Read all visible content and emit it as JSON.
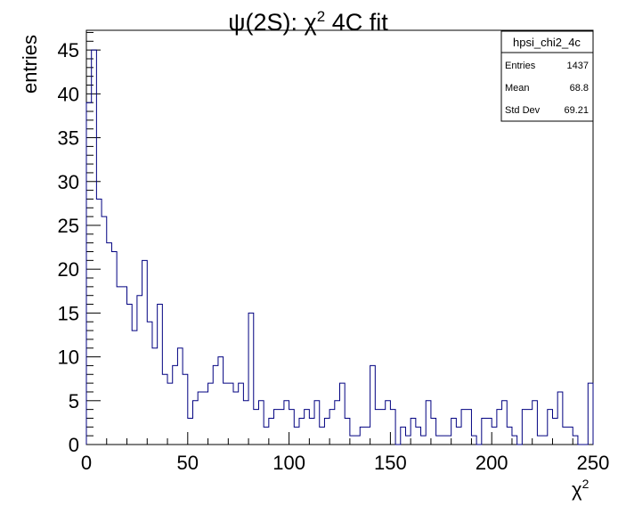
{
  "chart_data": {
    "type": "histogram",
    "title_main": "ψ(2S): χ",
    "title_sup": "2",
    "title_rest": " 4C fit",
    "ylabel": "entries",
    "xlabel_main": "χ",
    "xlabel_sup": "2",
    "xlim": [
      0,
      250
    ],
    "ylim": [
      0,
      47.25
    ],
    "bin_width": 2.5,
    "line_color": "#000080",
    "x_ticks": [
      "0",
      "50",
      "100",
      "150",
      "200",
      "250"
    ],
    "y_ticks": [
      "0",
      "5",
      "10",
      "15",
      "20",
      "25",
      "30",
      "35",
      "40",
      "45"
    ],
    "values": [
      39,
      45,
      28,
      26,
      23,
      22,
      18,
      18,
      16,
      13,
      17,
      21,
      14,
      11,
      16,
      8,
      7,
      9,
      11,
      8,
      3,
      5,
      6,
      6,
      7,
      9,
      10,
      7,
      7,
      6,
      7,
      5,
      15,
      4,
      5,
      2,
      3,
      4,
      4,
      5,
      4,
      2,
      3,
      4,
      3,
      5,
      2,
      3,
      4,
      5,
      7,
      3,
      1,
      1,
      2,
      2,
      9,
      4,
      4,
      5,
      4,
      0,
      2,
      1,
      3,
      2,
      1,
      5,
      3,
      1,
      1,
      1,
      3,
      2,
      4,
      4,
      1,
      0,
      3,
      3,
      2,
      4,
      5,
      2,
      1,
      0,
      4,
      4,
      5,
      1,
      1,
      4,
      3,
      6,
      2,
      2,
      1,
      0,
      0,
      7
    ],
    "legend": {
      "name": "hpsi_chi2_4c",
      "rows": [
        {
          "label": "Entries",
          "value": "1437"
        },
        {
          "label": "Mean",
          "value": "68.8"
        },
        {
          "label": "Std Dev",
          "value": "69.21"
        }
      ]
    }
  }
}
